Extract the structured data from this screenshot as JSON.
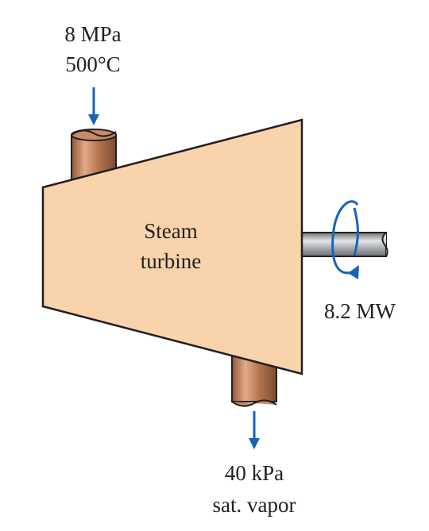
{
  "inlet": {
    "pressure": "8 MPa",
    "temperature": "500°C"
  },
  "turbine": {
    "line1": "Steam",
    "line2": "turbine"
  },
  "power": {
    "value": "8.2 MW"
  },
  "outlet": {
    "pressure": "40 kPa",
    "state": "sat. vapor"
  },
  "colors": {
    "turbine_fill": "#f9d3ac",
    "pipe_fill": "#b57650",
    "pipe_highlight": "#e0a886",
    "shaft_fill": "#9a9da2",
    "arrow": "#1565b7",
    "outline": "#231f20"
  },
  "icons": [
    "down-arrow-icon",
    "rotation-arrow-icon"
  ]
}
